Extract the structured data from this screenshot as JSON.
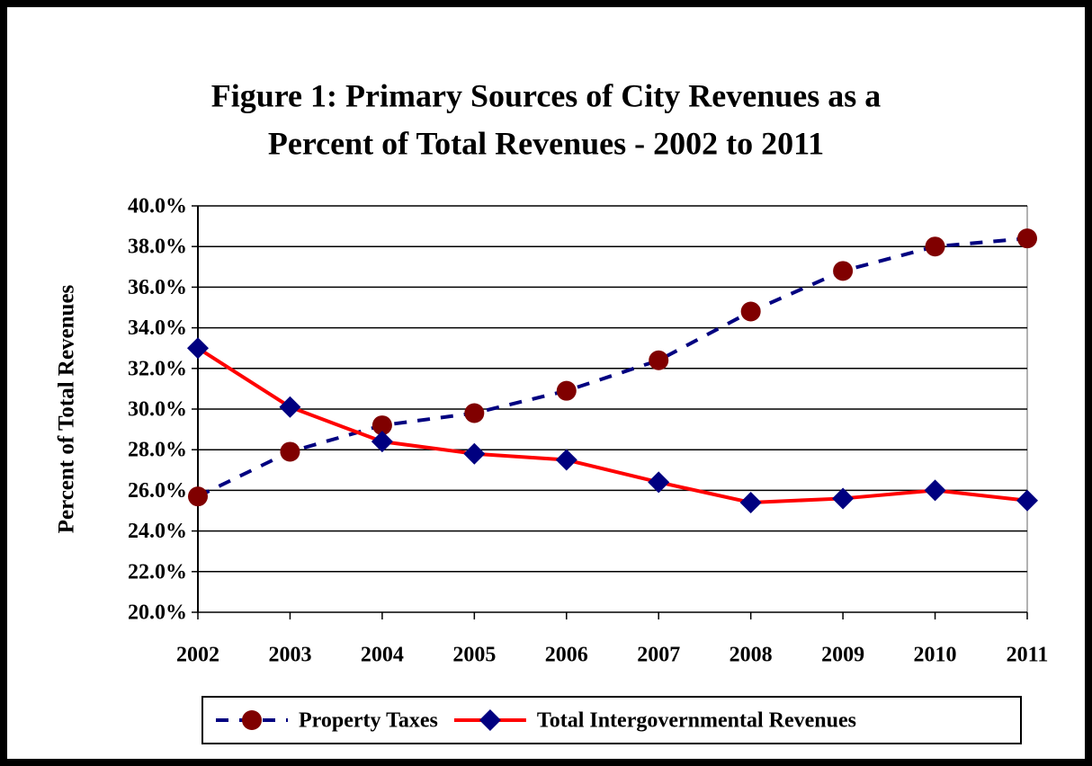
{
  "chart_data": {
    "type": "line",
    "title": [
      "Figure 1:  Primary Sources of City Revenues as a",
      "Percent of Total Revenues - 2002 to 2011"
    ],
    "y_label": "Percent of Total Revenues",
    "categories": [
      "2002",
      "2003",
      "2004",
      "2005",
      "2006",
      "2007",
      "2008",
      "2009",
      "2010",
      "2011"
    ],
    "series": [
      {
        "name": "Property Taxes",
        "color": "#000080",
        "marker_color": "#800000",
        "marker": "circle",
        "dash": true,
        "values": [
          25.7,
          27.9,
          29.2,
          29.8,
          30.9,
          32.4,
          34.8,
          36.8,
          38.0,
          38.4
        ]
      },
      {
        "name": "Total  Intergovernmental Revenues",
        "color": "#ff0000",
        "marker_color": "#000080",
        "marker": "diamond",
        "dash": false,
        "values": [
          33.0,
          30.1,
          28.4,
          27.8,
          27.5,
          26.4,
          25.4,
          25.6,
          26.0,
          25.5
        ]
      }
    ],
    "ylim": [
      20,
      40
    ],
    "yticks": [
      {
        "value": 20,
        "label": "20.0%"
      },
      {
        "value": 22,
        "label": "22.0%"
      },
      {
        "value": 24,
        "label": "24.0%"
      },
      {
        "value": 26,
        "label": "26.0%"
      },
      {
        "value": 28,
        "label": "28.0%"
      },
      {
        "value": 30,
        "label": "30.0%"
      },
      {
        "value": 32,
        "label": "32.0%"
      },
      {
        "value": 34,
        "label": "34.0%"
      },
      {
        "value": 36,
        "label": "36.0%"
      },
      {
        "value": 38,
        "label": "38.0%"
      },
      {
        "value": 40,
        "label": "40.0%"
      }
    ],
    "grid": true,
    "legend": "bottom"
  }
}
